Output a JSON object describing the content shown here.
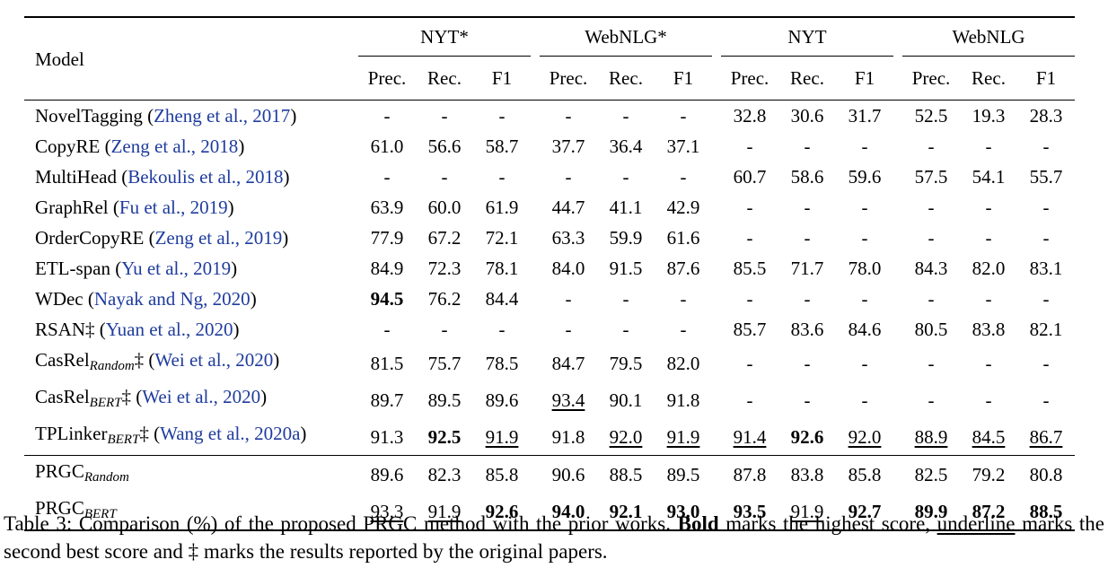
{
  "table": {
    "model_header": "Model",
    "groups": [
      "NYT*",
      "WebNLG*",
      "NYT",
      "WebNLG"
    ],
    "metrics": [
      "Prec.",
      "Rec.",
      "F1"
    ],
    "rows": [
      {
        "name": "NovelTagging",
        "sub": "",
        "mark": "",
        "cite": "Zheng et al., 2017",
        "values": [
          "-",
          "-",
          "-",
          "-",
          "-",
          "-",
          "32.8",
          "30.6",
          "31.7",
          "52.5",
          "19.3",
          "28.3"
        ],
        "styles": [
          "",
          "",
          "",
          "",
          "",
          "",
          "",
          "",
          "",
          "",
          "",
          ""
        ]
      },
      {
        "name": "CopyRE",
        "sub": "",
        "mark": "",
        "cite": "Zeng et al., 2018",
        "values": [
          "61.0",
          "56.6",
          "58.7",
          "37.7",
          "36.4",
          "37.1",
          "-",
          "-",
          "-",
          "-",
          "-",
          "-"
        ],
        "styles": [
          "",
          "",
          "",
          "",
          "",
          "",
          "",
          "",
          "",
          "",
          "",
          ""
        ]
      },
      {
        "name": "MultiHead",
        "sub": "",
        "mark": "",
        "cite": "Bekoulis et al., 2018",
        "values": [
          "-",
          "-",
          "-",
          "-",
          "-",
          "-",
          "60.7",
          "58.6",
          "59.6",
          "57.5",
          "54.1",
          "55.7"
        ],
        "styles": [
          "",
          "",
          "",
          "",
          "",
          "",
          "",
          "",
          "",
          "",
          "",
          ""
        ]
      },
      {
        "name": "GraphRel",
        "sub": "",
        "mark": "",
        "cite": "Fu et al., 2019",
        "values": [
          "63.9",
          "60.0",
          "61.9",
          "44.7",
          "41.1",
          "42.9",
          "-",
          "-",
          "-",
          "-",
          "-",
          "-"
        ],
        "styles": [
          "",
          "",
          "",
          "",
          "",
          "",
          "",
          "",
          "",
          "",
          "",
          ""
        ]
      },
      {
        "name": "OrderCopyRE",
        "sub": "",
        "mark": "",
        "cite": "Zeng et al., 2019",
        "values": [
          "77.9",
          "67.2",
          "72.1",
          "63.3",
          "59.9",
          "61.6",
          "-",
          "-",
          "-",
          "-",
          "-",
          "-"
        ],
        "styles": [
          "",
          "",
          "",
          "",
          "",
          "",
          "",
          "",
          "",
          "",
          "",
          ""
        ]
      },
      {
        "name": "ETL-span",
        "sub": "",
        "mark": "",
        "cite": "Yu et al., 2019",
        "values": [
          "84.9",
          "72.3",
          "78.1",
          "84.0",
          "91.5",
          "87.6",
          "85.5",
          "71.7",
          "78.0",
          "84.3",
          "82.0",
          "83.1"
        ],
        "styles": [
          "",
          "",
          "",
          "",
          "",
          "",
          "",
          "",
          "",
          "",
          "",
          ""
        ]
      },
      {
        "name": "WDec",
        "sub": "",
        "mark": "",
        "cite": "Nayak and Ng, 2020",
        "values": [
          "94.5",
          "76.2",
          "84.4",
          "-",
          "-",
          "-",
          "-",
          "-",
          "-",
          "-",
          "-",
          "-"
        ],
        "styles": [
          "b",
          "",
          "",
          "",
          "",
          "",
          "",
          "",
          "",
          "",
          "",
          ""
        ]
      },
      {
        "name": "RSAN",
        "sub": "",
        "mark": "‡",
        "cite": "Yuan et al., 2020",
        "values": [
          "-",
          "-",
          "-",
          "-",
          "-",
          "-",
          "85.7",
          "83.6",
          "84.6",
          "80.5",
          "83.8",
          "82.1"
        ],
        "styles": [
          "",
          "",
          "",
          "",
          "",
          "",
          "",
          "",
          "",
          "",
          "",
          ""
        ]
      },
      {
        "name": "CasRel",
        "sub": "Random",
        "mark": "‡",
        "cite": "Wei et al., 2020",
        "values": [
          "81.5",
          "75.7",
          "78.5",
          "84.7",
          "79.5",
          "82.0",
          "-",
          "-",
          "-",
          "-",
          "-",
          "-"
        ],
        "styles": [
          "",
          "",
          "",
          "",
          "",
          "",
          "",
          "",
          "",
          "",
          "",
          ""
        ]
      },
      {
        "name": "CasRel",
        "sub": "BERT",
        "mark": "‡",
        "cite": "Wei et al., 2020",
        "values": [
          "89.7",
          "89.5",
          "89.6",
          "93.4",
          "90.1",
          "91.8",
          "-",
          "-",
          "-",
          "-",
          "-",
          "-"
        ],
        "styles": [
          "",
          "",
          "",
          "u",
          "",
          "",
          "",
          "",
          "",
          "",
          "",
          ""
        ]
      },
      {
        "name": "TPLinker",
        "sub": "BERT",
        "mark": "‡",
        "cite": "Wang et al., 2020a",
        "values": [
          "91.3",
          "92.5",
          "91.9",
          "91.8",
          "92.0",
          "91.9",
          "91.4",
          "92.6",
          "92.0",
          "88.9",
          "84.5",
          "86.7"
        ],
        "styles": [
          "",
          "b",
          "u",
          "",
          "u",
          "u",
          "u",
          "b",
          "u",
          "u",
          "u",
          "u"
        ]
      },
      {
        "name": "PRGC",
        "sub": "Random",
        "mark": "",
        "cite": "",
        "values": [
          "89.6",
          "82.3",
          "85.8",
          "90.6",
          "88.5",
          "89.5",
          "87.8",
          "83.8",
          "85.8",
          "82.5",
          "79.2",
          "80.8"
        ],
        "styles": [
          "",
          "",
          "",
          "",
          "",
          "",
          "",
          "",
          "",
          "",
          "",
          ""
        ]
      },
      {
        "name": "PRGC",
        "sub": "BERT",
        "mark": "",
        "cite": "",
        "values": [
          "93.3",
          "91.9",
          "92.6",
          "94.0",
          "92.1",
          "93.0",
          "93.5",
          "91.9",
          "92.7",
          "89.9",
          "87.2",
          "88.5"
        ],
        "styles": [
          "u",
          "u",
          "b",
          "b",
          "b",
          "b",
          "b",
          "u",
          "b",
          "b",
          "b",
          "b"
        ]
      }
    ]
  },
  "caption": {
    "part1": "Table 3: Comparison (%) of the proposed PRGC method with the prior works. ",
    "bold_word": "Bold",
    "part2": " marks the highest score, ",
    "underline_word": "underline",
    "part3": " marks the second best score and ‡ marks the results reported by the original papers."
  }
}
